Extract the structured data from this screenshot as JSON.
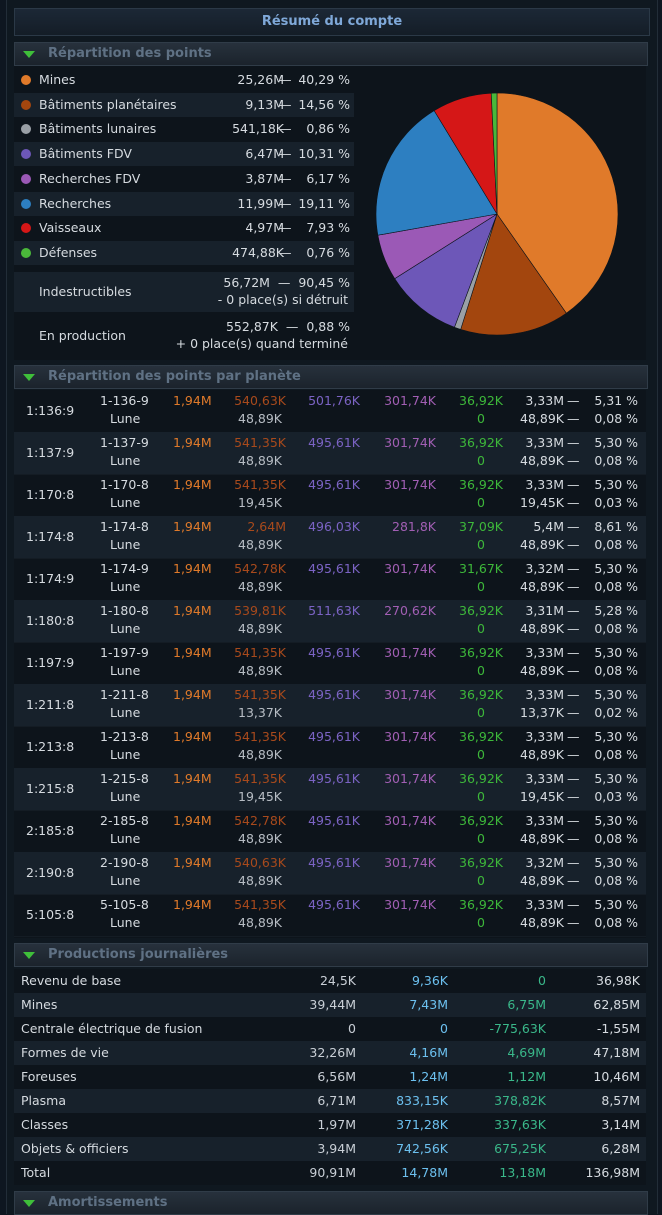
{
  "title": "Résumé du compte",
  "colors": {
    "mines": "#e07a2a",
    "batiments_planetaires": "#a3460e",
    "batiments_lunaires": "#9aa0a6",
    "batiments_fdv": "#6d57b8",
    "recherches_fdv": "#9b59b6",
    "recherches": "#2d7fc1",
    "vaisseaux": "#d51717",
    "defenses": "#4ab83a"
  },
  "points": {
    "header": "Répartition des points",
    "rows": [
      {
        "name": "Mines",
        "value": "25,26M",
        "dash": "—",
        "pct": "40,29 %",
        "color": "#e07a2a",
        "share": 40.29
      },
      {
        "name": "Bâtiments planétaires",
        "value": "9,13M",
        "dash": "—",
        "pct": "14,56 %",
        "color": "#a3460e",
        "share": 14.56
      },
      {
        "name": "Bâtiments lunaires",
        "value": "541,18K",
        "dash": "—",
        "pct": "0,86 %",
        "color": "#9aa0a6",
        "share": 0.86
      },
      {
        "name": "Bâtiments FDV",
        "value": "6,47M",
        "dash": "—",
        "pct": "10,31 %",
        "color": "#6d57b8",
        "share": 10.31
      },
      {
        "name": "Recherches FDV",
        "value": "3,87M",
        "dash": "—",
        "pct": "6,17 %",
        "color": "#9b59b6",
        "share": 6.17
      },
      {
        "name": "Recherches",
        "value": "11,99M",
        "dash": "—",
        "pct": "19,11 %",
        "color": "#2d7fc1",
        "share": 19.11
      },
      {
        "name": "Vaisseaux",
        "value": "4,97M",
        "dash": "—",
        "pct": "7,93 %",
        "color": "#d51717",
        "share": 7.93
      },
      {
        "name": "Défenses",
        "value": "474,88K",
        "dash": "—",
        "pct": "0,76 %",
        "color": "#4ab83a",
        "share": 0.76
      }
    ],
    "indestructibles": {
      "name": "Indestructibles",
      "line1": "56,72M  —  90,45 %",
      "line2": "- 0 place(s) si détruit"
    },
    "production": {
      "name": "En production",
      "line1": "552,87K  —  0,88 %",
      "line2": "+ 0 place(s) quand terminé"
    }
  },
  "planets": {
    "header": "Répartition des points par planète",
    "rows": [
      {
        "coord": "1:136:9",
        "p": "1-136-9",
        "m": "Lune",
        "mines": "1,94M",
        "bat": "540,63K",
        "lun": "48,89K",
        "fdv": "501,76K",
        "rfdv": "301,74K",
        "vai": "36,92K",
        "vaim": "0",
        "tot": "3,33M",
        "totm": "48,89K",
        "pct": "5,31 %",
        "pctm": "0,08 %"
      },
      {
        "coord": "1:137:9",
        "p": "1-137-9",
        "m": "Lune",
        "mines": "1,94M",
        "bat": "541,35K",
        "lun": "48,89K",
        "fdv": "495,61K",
        "rfdv": "301,74K",
        "vai": "36,92K",
        "vaim": "0",
        "tot": "3,33M",
        "totm": "48,89K",
        "pct": "5,30 %",
        "pctm": "0,08 %"
      },
      {
        "coord": "1:170:8",
        "p": "1-170-8",
        "m": "Lune",
        "mines": "1,94M",
        "bat": "541,35K",
        "lun": "19,45K",
        "fdv": "495,61K",
        "rfdv": "301,74K",
        "vai": "36,92K",
        "vaim": "0",
        "tot": "3,33M",
        "totm": "19,45K",
        "pct": "5,30 %",
        "pctm": "0,03 %"
      },
      {
        "coord": "1:174:8",
        "p": "1-174-8",
        "m": "Lune",
        "mines": "1,94M",
        "bat": "2,64M",
        "lun": "48,89K",
        "fdv": "496,03K",
        "rfdv": "281,8K",
        "vai": "37,09K",
        "vaim": "0",
        "tot": "5,4M",
        "totm": "48,89K",
        "pct": "8,61 %",
        "pctm": "0,08 %"
      },
      {
        "coord": "1:174:9",
        "p": "1-174-9",
        "m": "Lune",
        "mines": "1,94M",
        "bat": "542,78K",
        "lun": "48,89K",
        "fdv": "495,61K",
        "rfdv": "301,74K",
        "vai": "31,67K",
        "vaim": "0",
        "tot": "3,32M",
        "totm": "48,89K",
        "pct": "5,30 %",
        "pctm": "0,08 %"
      },
      {
        "coord": "1:180:8",
        "p": "1-180-8",
        "m": "Lune",
        "mines": "1,94M",
        "bat": "539,81K",
        "lun": "48,89K",
        "fdv": "511,63K",
        "rfdv": "270,62K",
        "vai": "36,92K",
        "vaim": "0",
        "tot": "3,31M",
        "totm": "48,89K",
        "pct": "5,28 %",
        "pctm": "0,08 %"
      },
      {
        "coord": "1:197:9",
        "p": "1-197-9",
        "m": "Lune",
        "mines": "1,94M",
        "bat": "541,35K",
        "lun": "48,89K",
        "fdv": "495,61K",
        "rfdv": "301,74K",
        "vai": "36,92K",
        "vaim": "0",
        "tot": "3,33M",
        "totm": "48,89K",
        "pct": "5,30 %",
        "pctm": "0,08 %"
      },
      {
        "coord": "1:211:8",
        "p": "1-211-8",
        "m": "Lune",
        "mines": "1,94M",
        "bat": "541,35K",
        "lun": "13,37K",
        "fdv": "495,61K",
        "rfdv": "301,74K",
        "vai": "36,92K",
        "vaim": "0",
        "tot": "3,33M",
        "totm": "13,37K",
        "pct": "5,30 %",
        "pctm": "0,02 %"
      },
      {
        "coord": "1:213:8",
        "p": "1-213-8",
        "m": "Lune",
        "mines": "1,94M",
        "bat": "541,35K",
        "lun": "48,89K",
        "fdv": "495,61K",
        "rfdv": "301,74K",
        "vai": "36,92K",
        "vaim": "0",
        "tot": "3,33M",
        "totm": "48,89K",
        "pct": "5,30 %",
        "pctm": "0,08 %"
      },
      {
        "coord": "1:215:8",
        "p": "1-215-8",
        "m": "Lune",
        "mines": "1,94M",
        "bat": "541,35K",
        "lun": "19,45K",
        "fdv": "495,61K",
        "rfdv": "301,74K",
        "vai": "36,92K",
        "vaim": "0",
        "tot": "3,33M",
        "totm": "19,45K",
        "pct": "5,30 %",
        "pctm": "0,03 %"
      },
      {
        "coord": "2:185:8",
        "p": "2-185-8",
        "m": "Lune",
        "mines": "1,94M",
        "bat": "542,78K",
        "lun": "48,89K",
        "fdv": "495,61K",
        "rfdv": "301,74K",
        "vai": "36,92K",
        "vaim": "0",
        "tot": "3,33M",
        "totm": "48,89K",
        "pct": "5,30 %",
        "pctm": "0,08 %"
      },
      {
        "coord": "2:190:8",
        "p": "2-190-8",
        "m": "Lune",
        "mines": "1,94M",
        "bat": "540,63K",
        "lun": "48,89K",
        "fdv": "495,61K",
        "rfdv": "301,74K",
        "vai": "36,92K",
        "vaim": "0",
        "tot": "3,32M",
        "totm": "48,89K",
        "pct": "5,30 %",
        "pctm": "0,08 %"
      },
      {
        "coord": "5:105:8",
        "p": "5-105-8",
        "m": "Lune",
        "mines": "1,94M",
        "bat": "541,35K",
        "lun": "48,89K",
        "fdv": "495,61K",
        "rfdv": "301,74K",
        "vai": "36,92K",
        "vaim": "0",
        "tot": "3,33M",
        "totm": "48,89K",
        "pct": "5,30 %",
        "pctm": "0,08 %"
      }
    ]
  },
  "productions": {
    "header": "Productions journalières",
    "rows": [
      {
        "name": "Revenu de base",
        "a": "24,5K",
        "b": "9,36K",
        "c": "0",
        "d": "36,98K"
      },
      {
        "name": "Mines",
        "a": "39,44M",
        "b": "7,43M",
        "c": "6,75M",
        "d": "62,85M"
      },
      {
        "name": "Centrale électrique de fusion",
        "a": "0",
        "b": "0",
        "c": "-775,63K",
        "d": "-1,55M"
      },
      {
        "name": "Formes de vie",
        "a": "32,26M",
        "b": "4,16M",
        "c": "4,69M",
        "d": "47,18M"
      },
      {
        "name": "Foreuses",
        "a": "6,56M",
        "b": "1,24M",
        "c": "1,12M",
        "d": "10,46M"
      },
      {
        "name": "Plasma",
        "a": "6,71M",
        "b": "833,15K",
        "c": "378,82K",
        "d": "8,57M"
      },
      {
        "name": "Classes",
        "a": "1,97M",
        "b": "371,28K",
        "c": "337,63K",
        "d": "3,14M"
      },
      {
        "name": "Objets & officiers",
        "a": "3,94M",
        "b": "742,56K",
        "c": "675,25K",
        "d": "6,28M"
      },
      {
        "name": "Total",
        "a": "90,91M",
        "b": "14,78M",
        "c": "13,18M",
        "d": "136,98M"
      }
    ]
  },
  "amortissements": {
    "header": "Amortissements"
  }
}
